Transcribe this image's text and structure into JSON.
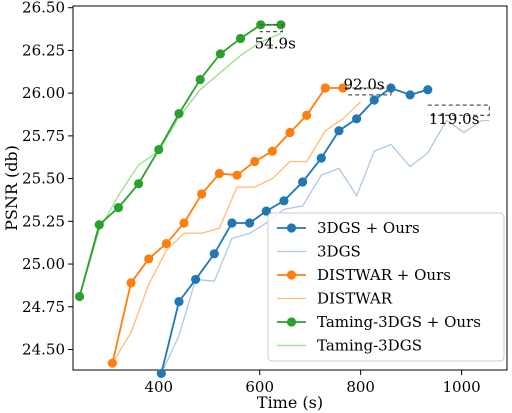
{
  "chart_data": {
    "type": "line",
    "xlabel": "Time (s)",
    "ylabel": "PSNR (db)",
    "xlim": [
      230,
      1090
    ],
    "ylim": [
      24.38,
      26.51
    ],
    "xticks": [
      400,
      600,
      800,
      1000
    ],
    "yticks": [
      24.5,
      24.75,
      25.0,
      25.25,
      25.5,
      25.75,
      26.0,
      26.25,
      26.5
    ],
    "ytick_labels": [
      "24.50",
      "24.75",
      "25.00",
      "25.25",
      "25.50",
      "25.75",
      "26.00",
      "26.25",
      "26.50"
    ],
    "xtick_labels": [
      "400",
      "600",
      "800",
      "1000"
    ],
    "legend_position": "lower-right",
    "grid": false,
    "series": [
      {
        "name": "3DGS + Ours",
        "color": "#1f77b4",
        "style": "marker",
        "x": [
          405,
          440,
          473,
          510,
          545,
          580,
          613,
          648,
          685,
          722,
          757,
          792,
          827,
          860,
          898,
          933
        ],
        "y": [
          24.36,
          24.78,
          24.91,
          25.06,
          25.24,
          25.24,
          25.31,
          25.37,
          25.48,
          25.62,
          25.78,
          25.85,
          25.96,
          26.03,
          25.99,
          26.02
        ]
      },
      {
        "name": "3DGS",
        "color": "#aec7e8",
        "style": "thin",
        "x": [
          405,
          440,
          473,
          510,
          545,
          580,
          613,
          648,
          685,
          722,
          757,
          792,
          827,
          860,
          898,
          933,
          970,
          1005,
          1040,
          1055
        ],
        "y": [
          24.36,
          24.58,
          24.91,
          24.9,
          25.15,
          25.18,
          25.24,
          25.32,
          25.34,
          25.52,
          25.56,
          25.4,
          25.66,
          25.7,
          25.57,
          25.65,
          25.84,
          25.77,
          25.84,
          25.84
        ]
      },
      {
        "name": "DISTWAR + Ours",
        "color": "#ff7f0e",
        "style": "marker",
        "x": [
          308,
          345,
          380,
          415,
          450,
          485,
          520,
          555,
          590,
          625,
          660,
          693,
          730,
          765
        ],
        "y": [
          24.42,
          24.89,
          25.03,
          25.12,
          25.24,
          25.41,
          25.53,
          25.52,
          25.6,
          25.66,
          25.77,
          25.87,
          26.03,
          26.03
        ]
      },
      {
        "name": "DISTWAR",
        "color": "#ffbb78",
        "style": "thin",
        "x": [
          308,
          345,
          380,
          415,
          450,
          485,
          520,
          555,
          590,
          625,
          660,
          693,
          730,
          765,
          800
        ],
        "y": [
          24.42,
          24.6,
          24.88,
          25.08,
          25.18,
          25.18,
          25.21,
          25.45,
          25.45,
          25.5,
          25.6,
          25.6,
          25.78,
          25.85,
          25.95
        ]
      },
      {
        "name": "Taming-3DGS + Ours",
        "color": "#2ca02c",
        "style": "marker",
        "x": [
          243,
          282,
          320,
          360,
          400,
          440,
          482,
          522,
          562,
          602,
          642
        ],
        "y": [
          24.81,
          25.23,
          25.33,
          25.47,
          25.67,
          25.88,
          26.08,
          26.23,
          26.32,
          26.4,
          26.4
        ]
      },
      {
        "name": "Taming-3DGS",
        "color": "#98df8a",
        "style": "thin",
        "x": [
          243,
          282,
          320,
          360,
          400,
          440,
          482,
          522,
          562,
          602,
          642
        ],
        "y": [
          24.81,
          25.2,
          25.4,
          25.58,
          25.66,
          25.86,
          26.02,
          26.12,
          26.22,
          26.3,
          26.35
        ]
      }
    ],
    "annotations": [
      {
        "text": "54.9s",
        "x0": 600,
        "x1": 645,
        "y0": 26.36,
        "y1": 26.4,
        "label_x": 590,
        "label_y": 26.29
      },
      {
        "text": "92.0s",
        "x0": 770,
        "x1": 860,
        "y0": 25.99,
        "y1": 26.03,
        "label_x": 766,
        "label_y": 26.05
      },
      {
        "text": "119.0s",
        "x0": 933,
        "x1": 1055,
        "y0": 25.87,
        "y1": 25.93,
        "label_x": 935,
        "label_y": 25.85
      }
    ]
  }
}
